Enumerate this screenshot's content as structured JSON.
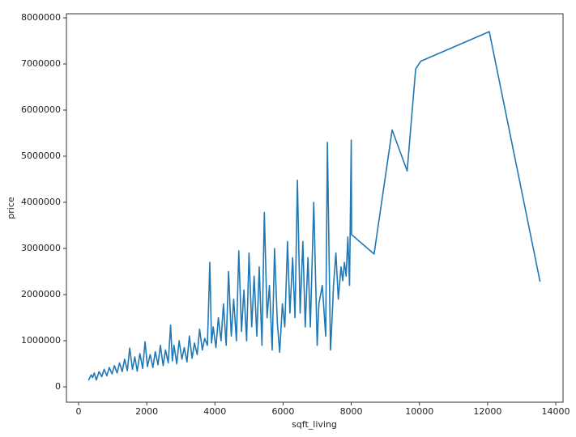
{
  "chart_data": {
    "type": "line",
    "x_label": "sqft_living",
    "y_label": "price",
    "color": "#1f77b4",
    "xlim": [
      -357,
      14214
    ],
    "ylim": [
      -333000,
      8088000
    ],
    "xticks": [
      0,
      2000,
      4000,
      6000,
      8000,
      10000,
      12000,
      14000
    ],
    "yticks": [
      0,
      1000000,
      2000000,
      3000000,
      4000000,
      5000000,
      6000000,
      7000000,
      8000000
    ],
    "x": [
      290,
      370,
      410,
      460,
      520,
      600,
      680,
      750,
      830,
      900,
      980,
      1050,
      1130,
      1200,
      1280,
      1350,
      1430,
      1500,
      1580,
      1650,
      1720,
      1800,
      1880,
      1950,
      2020,
      2100,
      2180,
      2250,
      2330,
      2400,
      2480,
      2550,
      2630,
      2700,
      2750,
      2800,
      2880,
      2950,
      3030,
      3100,
      3180,
      3250,
      3330,
      3400,
      3480,
      3550,
      3630,
      3700,
      3780,
      3850,
      3900,
      3950,
      4030,
      4100,
      4180,
      4250,
      4330,
      4400,
      4480,
      4550,
      4630,
      4700,
      4780,
      4850,
      4930,
      5000,
      5080,
      5150,
      5230,
      5300,
      5380,
      5450,
      5530,
      5600,
      5680,
      5750,
      5830,
      5900,
      5980,
      6050,
      6130,
      6200,
      6280,
      6350,
      6420,
      6500,
      6580,
      6650,
      6730,
      6800,
      6900,
      7000,
      7050,
      7150,
      7250,
      7300,
      7390,
      7420,
      7480,
      7550,
      7620,
      7700,
      7750,
      7800,
      7850,
      7900,
      7950,
      8000,
      8010,
      8670,
      9200,
      9640,
      9890,
      10040,
      12050,
      13540
    ],
    "values": [
      140000,
      260000,
      200000,
      300000,
      150000,
      330000,
      220000,
      380000,
      240000,
      420000,
      280000,
      460000,
      300000,
      520000,
      330000,
      600000,
      350000,
      840000,
      380000,
      650000,
      340000,
      720000,
      400000,
      980000,
      440000,
      700000,
      420000,
      760000,
      480000,
      900000,
      460000,
      800000,
      520000,
      1340000,
      560000,
      900000,
      500000,
      1000000,
      600000,
      850000,
      540000,
      1100000,
      620000,
      950000,
      700000,
      1250000,
      800000,
      1050000,
      900000,
      2700000,
      950000,
      1300000,
      850000,
      1500000,
      1000000,
      1800000,
      900000,
      2500000,
      1100000,
      1900000,
      1000000,
      2950000,
      1200000,
      2100000,
      1000000,
      2900000,
      1300000,
      2400000,
      1100000,
      2600000,
      900000,
      3780000,
      1500000,
      2200000,
      800000,
      3000000,
      1400000,
      750000,
      1800000,
      1300000,
      3150000,
      1600000,
      2800000,
      1500000,
      4480000,
      1600000,
      3150000,
      1300000,
      2800000,
      1300000,
      4000000,
      900000,
      1800000,
      2200000,
      1100000,
      5300000,
      800000,
      1200000,
      2200000,
      2900000,
      1900000,
      2600000,
      2300000,
      2700000,
      2400000,
      3250000,
      2200000,
      5350000,
      3300000,
      2880000,
      5570000,
      4680000,
      6890000,
      7060000,
      7700000,
      2280000
    ]
  }
}
